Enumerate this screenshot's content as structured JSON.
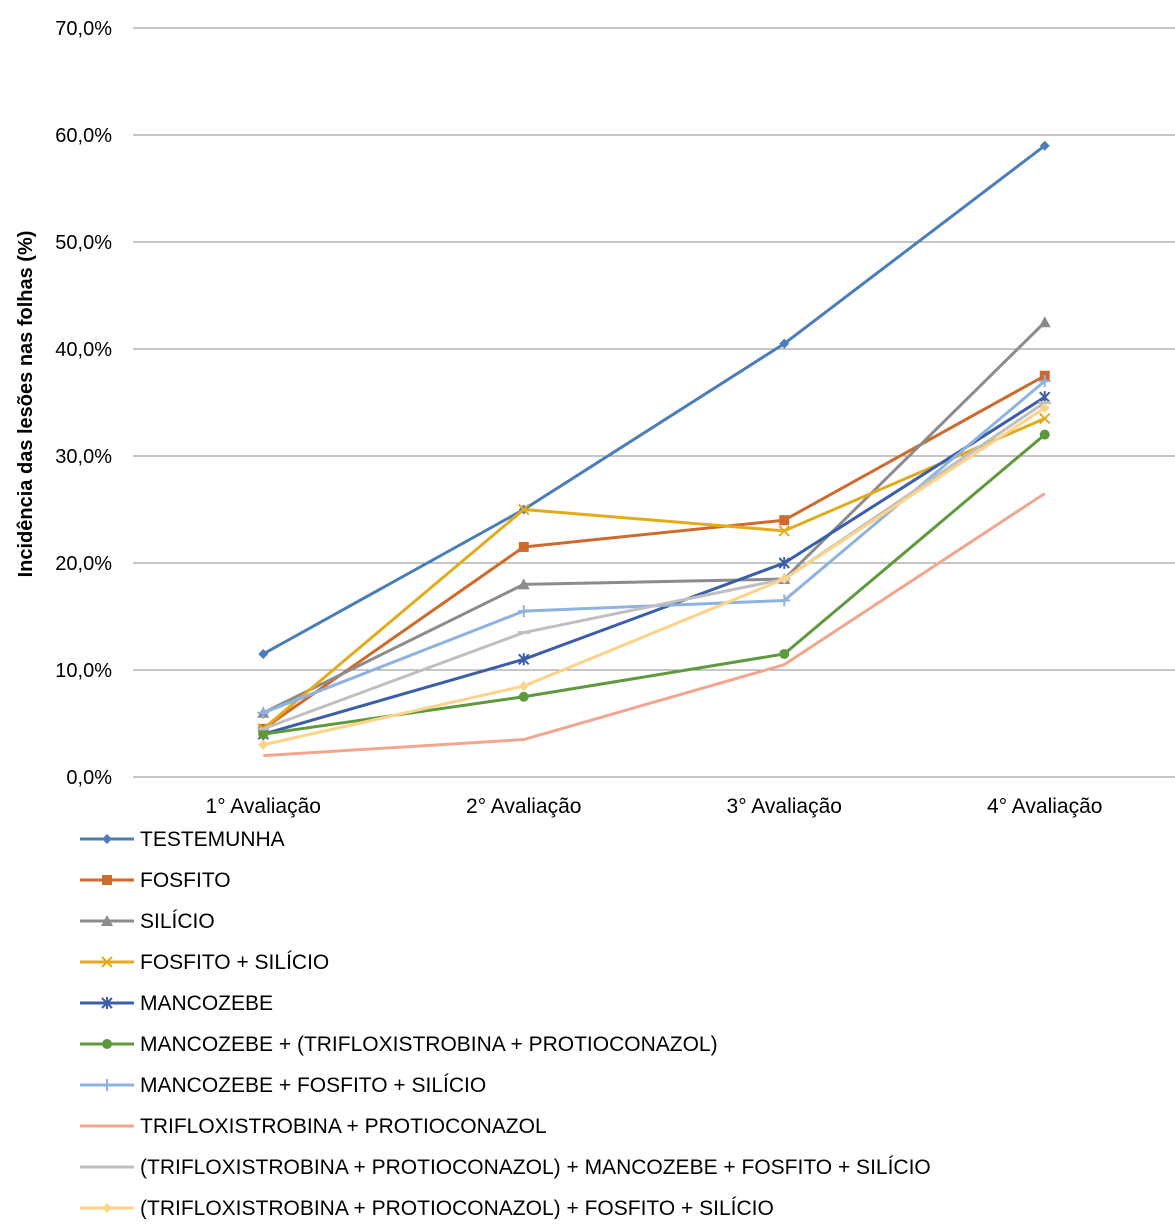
{
  "chart_data": {
    "type": "line",
    "title": "",
    "xlabel": "",
    "ylabel": "Incidência das lesões nas folhas (%)",
    "categories": [
      "1° Avaliação",
      "2° Avaliação",
      "3° Avaliação",
      "4° Avaliação"
    ],
    "ylim": [
      0,
      70
    ],
    "yticks": [
      0,
      10,
      20,
      30,
      40,
      50,
      60,
      70
    ],
    "ytick_labels": [
      "0,0%",
      "10,0%",
      "20,0%",
      "30,0%",
      "40,0%",
      "50,0%",
      "60,0%",
      "70,0%"
    ],
    "grid": "horizontal",
    "legend_position": "bottom",
    "series": [
      {
        "name": "TESTEMUNHA",
        "values": [
          11.5,
          25.0,
          40.5,
          59.0
        ],
        "color": "#4a7ebb",
        "marker": "diamond"
      },
      {
        "name": "FOSFITO",
        "values": [
          4.5,
          21.5,
          24.0,
          37.5
        ],
        "color": "#d06a2c",
        "marker": "square"
      },
      {
        "name": "SILÍCIO",
        "values": [
          6.0,
          18.0,
          18.5,
          42.5
        ],
        "color": "#8c8c8c",
        "marker": "triangle"
      },
      {
        "name": "FOSFITO + SILÍCIO",
        "values": [
          4.5,
          25.0,
          23.0,
          33.5
        ],
        "color": "#e3aa1c",
        "marker": "x"
      },
      {
        "name": "MANCOZEBE",
        "values": [
          4.0,
          11.0,
          20.0,
          35.5
        ],
        "color": "#3a5ea8",
        "marker": "star"
      },
      {
        "name": "MANCOZEBE + (TRIFLOXISTROBINA + PROTIOCONAZOL)",
        "values": [
          4.0,
          7.5,
          11.5,
          32.0
        ],
        "color": "#5e9a3c",
        "marker": "circle"
      },
      {
        "name": "MANCOZEBE + FOSFITO + SILÍCIO",
        "values": [
          6.0,
          15.5,
          16.5,
          37.0
        ],
        "color": "#8fb3e0",
        "marker": "plus"
      },
      {
        "name": "TRIFLOXISTROBINA + PROTIOCONAZOL",
        "values": [
          2.0,
          3.5,
          10.5,
          26.5
        ],
        "color": "#f2a68e",
        "marker": "none"
      },
      {
        "name": "(TRIFLOXISTROBINA + PROTIOCONAZOL) + MANCOZEBE + FOSFITO + SILÍCIO",
        "values": [
          4.5,
          13.5,
          18.5,
          35.0
        ],
        "color": "#bfbfbf",
        "marker": "dash"
      },
      {
        "name": "(TRIFLOXISTROBINA + PROTIOCONAZOL) + FOSFITO + SILÍCIO",
        "values": [
          3.0,
          8.5,
          18.5,
          34.5
        ],
        "color": "#fdd38a",
        "marker": "diamond"
      }
    ]
  }
}
